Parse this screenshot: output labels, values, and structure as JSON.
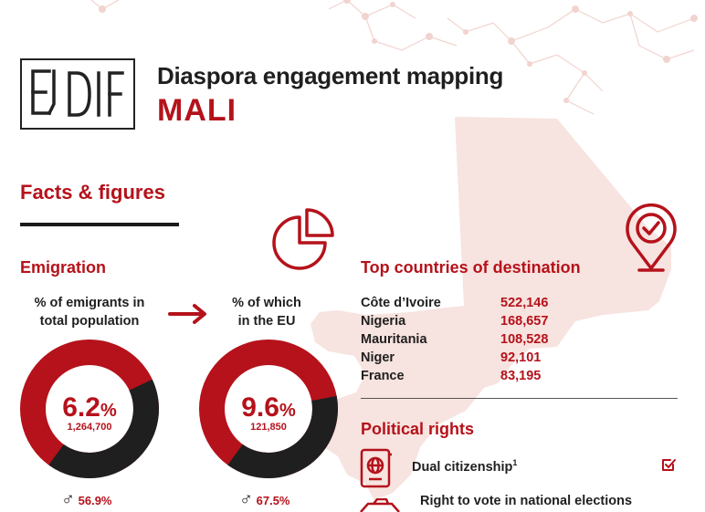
{
  "header": {
    "logo_text": "EUDIF",
    "title": "Diaspora engagement mapping",
    "country": "MALI"
  },
  "facts": {
    "heading": "Facts & figures"
  },
  "emigration": {
    "heading": "Emigration",
    "emigrants": {
      "label_line1": "% of emigrants in",
      "label_line2": "total population",
      "percent_value": "6.2",
      "percent_sign": "%",
      "count": "1,264,700",
      "share": 0.062,
      "male_share": "56.9%"
    },
    "eu": {
      "label_line1": "% of which",
      "label_line2": "in the EU",
      "percent_value": "9.6",
      "percent_sign": "%",
      "count": "121,850",
      "share": 0.096,
      "male_share": "67.5%"
    }
  },
  "destinations": {
    "heading": "Top countries of destination",
    "rows": [
      {
        "country": "Côte d’Ivoire",
        "value": "522,146"
      },
      {
        "country": "Nigeria",
        "value": "168,657"
      },
      {
        "country": "Mauritania",
        "value": "108,528"
      },
      {
        "country": "Niger",
        "value": "92,101"
      },
      {
        "country": "France",
        "value": "83,195"
      }
    ]
  },
  "political": {
    "heading": "Political rights",
    "dual_citizenship": "Dual citizenship",
    "dual_footnote": "1",
    "vote": "Right to vote in national elections"
  },
  "colors": {
    "accent": "#b5121b",
    "dark": "#1f1f1f",
    "map": "#f7e3df"
  },
  "icons": [
    "pie-chart-icon",
    "location-pin-icon",
    "arrow-right-icon",
    "passport-icon",
    "checkbox-icon",
    "ballot-icon",
    "male-icon"
  ]
}
